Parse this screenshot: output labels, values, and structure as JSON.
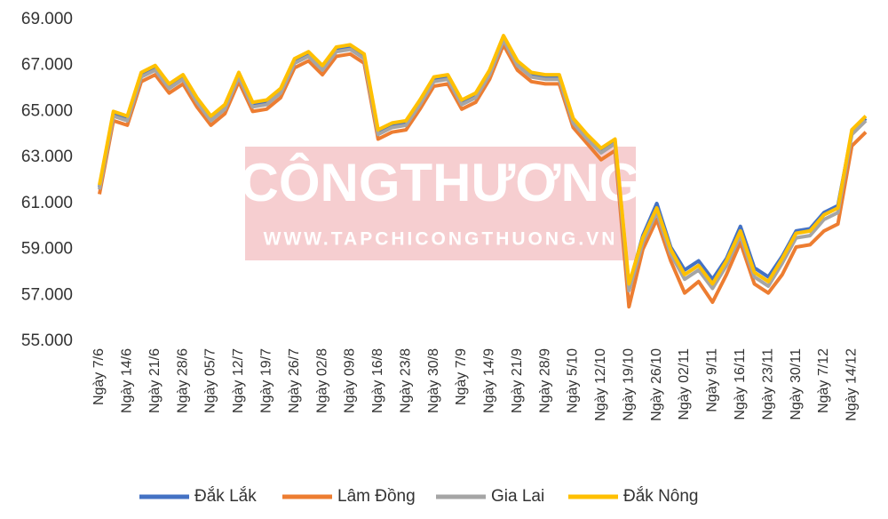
{
  "chart_data": {
    "type": "line",
    "watermark_title": "CÔNGTHƯƠNG",
    "watermark_url": "WWW.TAPCHICONGTHUONG.VN",
    "categories": [
      "Ngày 7/6",
      null,
      "Ngày 14/6",
      null,
      "Ngày 21/6",
      null,
      "Ngày 28/6",
      null,
      "Ngày 05/7",
      null,
      "Ngày 12/7",
      null,
      "Ngày 19/7",
      null,
      "Ngày 26/7",
      null,
      "Ngày 02/8",
      null,
      "Ngày 09/8",
      null,
      "Ngày 16/8",
      null,
      "Ngày 23/8",
      null,
      "Ngày 30/8",
      null,
      "Ngày 7/9",
      null,
      "Ngày 14/9",
      null,
      "Ngày 21/9",
      null,
      "Ngày 28/9",
      null,
      "Ngày 5/10",
      null,
      "Ngày 12/10",
      null,
      "Ngày 19/10",
      null,
      "Ngày 26/10",
      null,
      "Ngày 02/11",
      null,
      "Ngày 9/11",
      null,
      "Ngày 16/11",
      null,
      "Ngày 23/11",
      null,
      "Ngày 30/11",
      null,
      "Ngày 7/12",
      null,
      "Ngày 14/12",
      null
    ],
    "series": [
      {
        "name": "Đắk Lắk",
        "color": "#4472c4",
        "values": [
          61700,
          64900,
          64700,
          66600,
          66900,
          66100,
          66500,
          65500,
          64700,
          65200,
          66600,
          65300,
          65400,
          65900,
          67200,
          67500,
          66900,
          67700,
          67800,
          67400,
          64100,
          64400,
          64500,
          65400,
          66400,
          66500,
          65400,
          65700,
          66700,
          68200,
          67100,
          66600,
          66500,
          66500,
          64600,
          63900,
          63300,
          63700,
          57400,
          59600,
          61000,
          59100,
          58100,
          58500,
          57700,
          58600,
          60000,
          58200,
          57800,
          58700,
          59800,
          59900,
          60600,
          60900,
          64100,
          64700
        ]
      },
      {
        "name": "Lâm Đồng",
        "color": "#ed7d31",
        "values": [
          61400,
          64600,
          64400,
          66300,
          66600,
          65800,
          66200,
          65200,
          64400,
          64900,
          66300,
          65000,
          65100,
          65600,
          66900,
          67200,
          66600,
          67400,
          67500,
          67100,
          63800,
          64100,
          64200,
          65100,
          66100,
          66200,
          65100,
          65400,
          66400,
          67900,
          66800,
          66300,
          66200,
          66200,
          64300,
          63600,
          62900,
          63300,
          56500,
          59000,
          60300,
          58500,
          57100,
          57600,
          56700,
          57900,
          59300,
          57500,
          57100,
          57900,
          59100,
          59200,
          59800,
          60100,
          63500,
          64100
        ]
      },
      {
        "name": "Gia Lai",
        "color": "#a5a5a5",
        "values": [
          61600,
          64800,
          64600,
          66500,
          66800,
          66000,
          66400,
          65400,
          64600,
          65100,
          66500,
          65200,
          65300,
          65800,
          67100,
          67400,
          66800,
          67600,
          67700,
          67300,
          64000,
          64300,
          64400,
          65300,
          66300,
          66400,
          65300,
          65600,
          66600,
          68100,
          67000,
          66500,
          66400,
          66400,
          64500,
          63800,
          63200,
          63600,
          57200,
          59300,
          60600,
          58800,
          57700,
          58100,
          57300,
          58300,
          59600,
          57800,
          57400,
          58400,
          59500,
          59600,
          60300,
          60600,
          64000,
          64600
        ]
      },
      {
        "name": "Đắk Nông",
        "color": "#ffc000",
        "values": [
          61800,
          65000,
          64800,
          66700,
          67000,
          66200,
          66600,
          65600,
          64800,
          65300,
          66700,
          65400,
          65500,
          66000,
          67300,
          67600,
          67000,
          67800,
          67900,
          67500,
          64200,
          64500,
          64600,
          65500,
          66500,
          66600,
          65500,
          65800,
          66800,
          68300,
          67200,
          66700,
          66600,
          66600,
          64700,
          64000,
          63400,
          63800,
          57500,
          59500,
          60800,
          59000,
          57900,
          58300,
          57500,
          58500,
          59800,
          58000,
          57600,
          58600,
          59700,
          59800,
          60500,
          60800,
          64200,
          64800
        ]
      }
    ],
    "ylim": [
      55000,
      69000
    ],
    "yticks": [
      {
        "value": 55000,
        "label": "55.000"
      },
      {
        "value": 57000,
        "label": "57.000"
      },
      {
        "value": 59000,
        "label": "59.000"
      },
      {
        "value": 61000,
        "label": "61.000"
      },
      {
        "value": 63000,
        "label": "63.000"
      },
      {
        "value": 65000,
        "label": "65.000"
      },
      {
        "value": 67000,
        "label": "67.000"
      },
      {
        "value": 69000,
        "label": "69.000"
      }
    ],
    "legend": "bottom"
  }
}
